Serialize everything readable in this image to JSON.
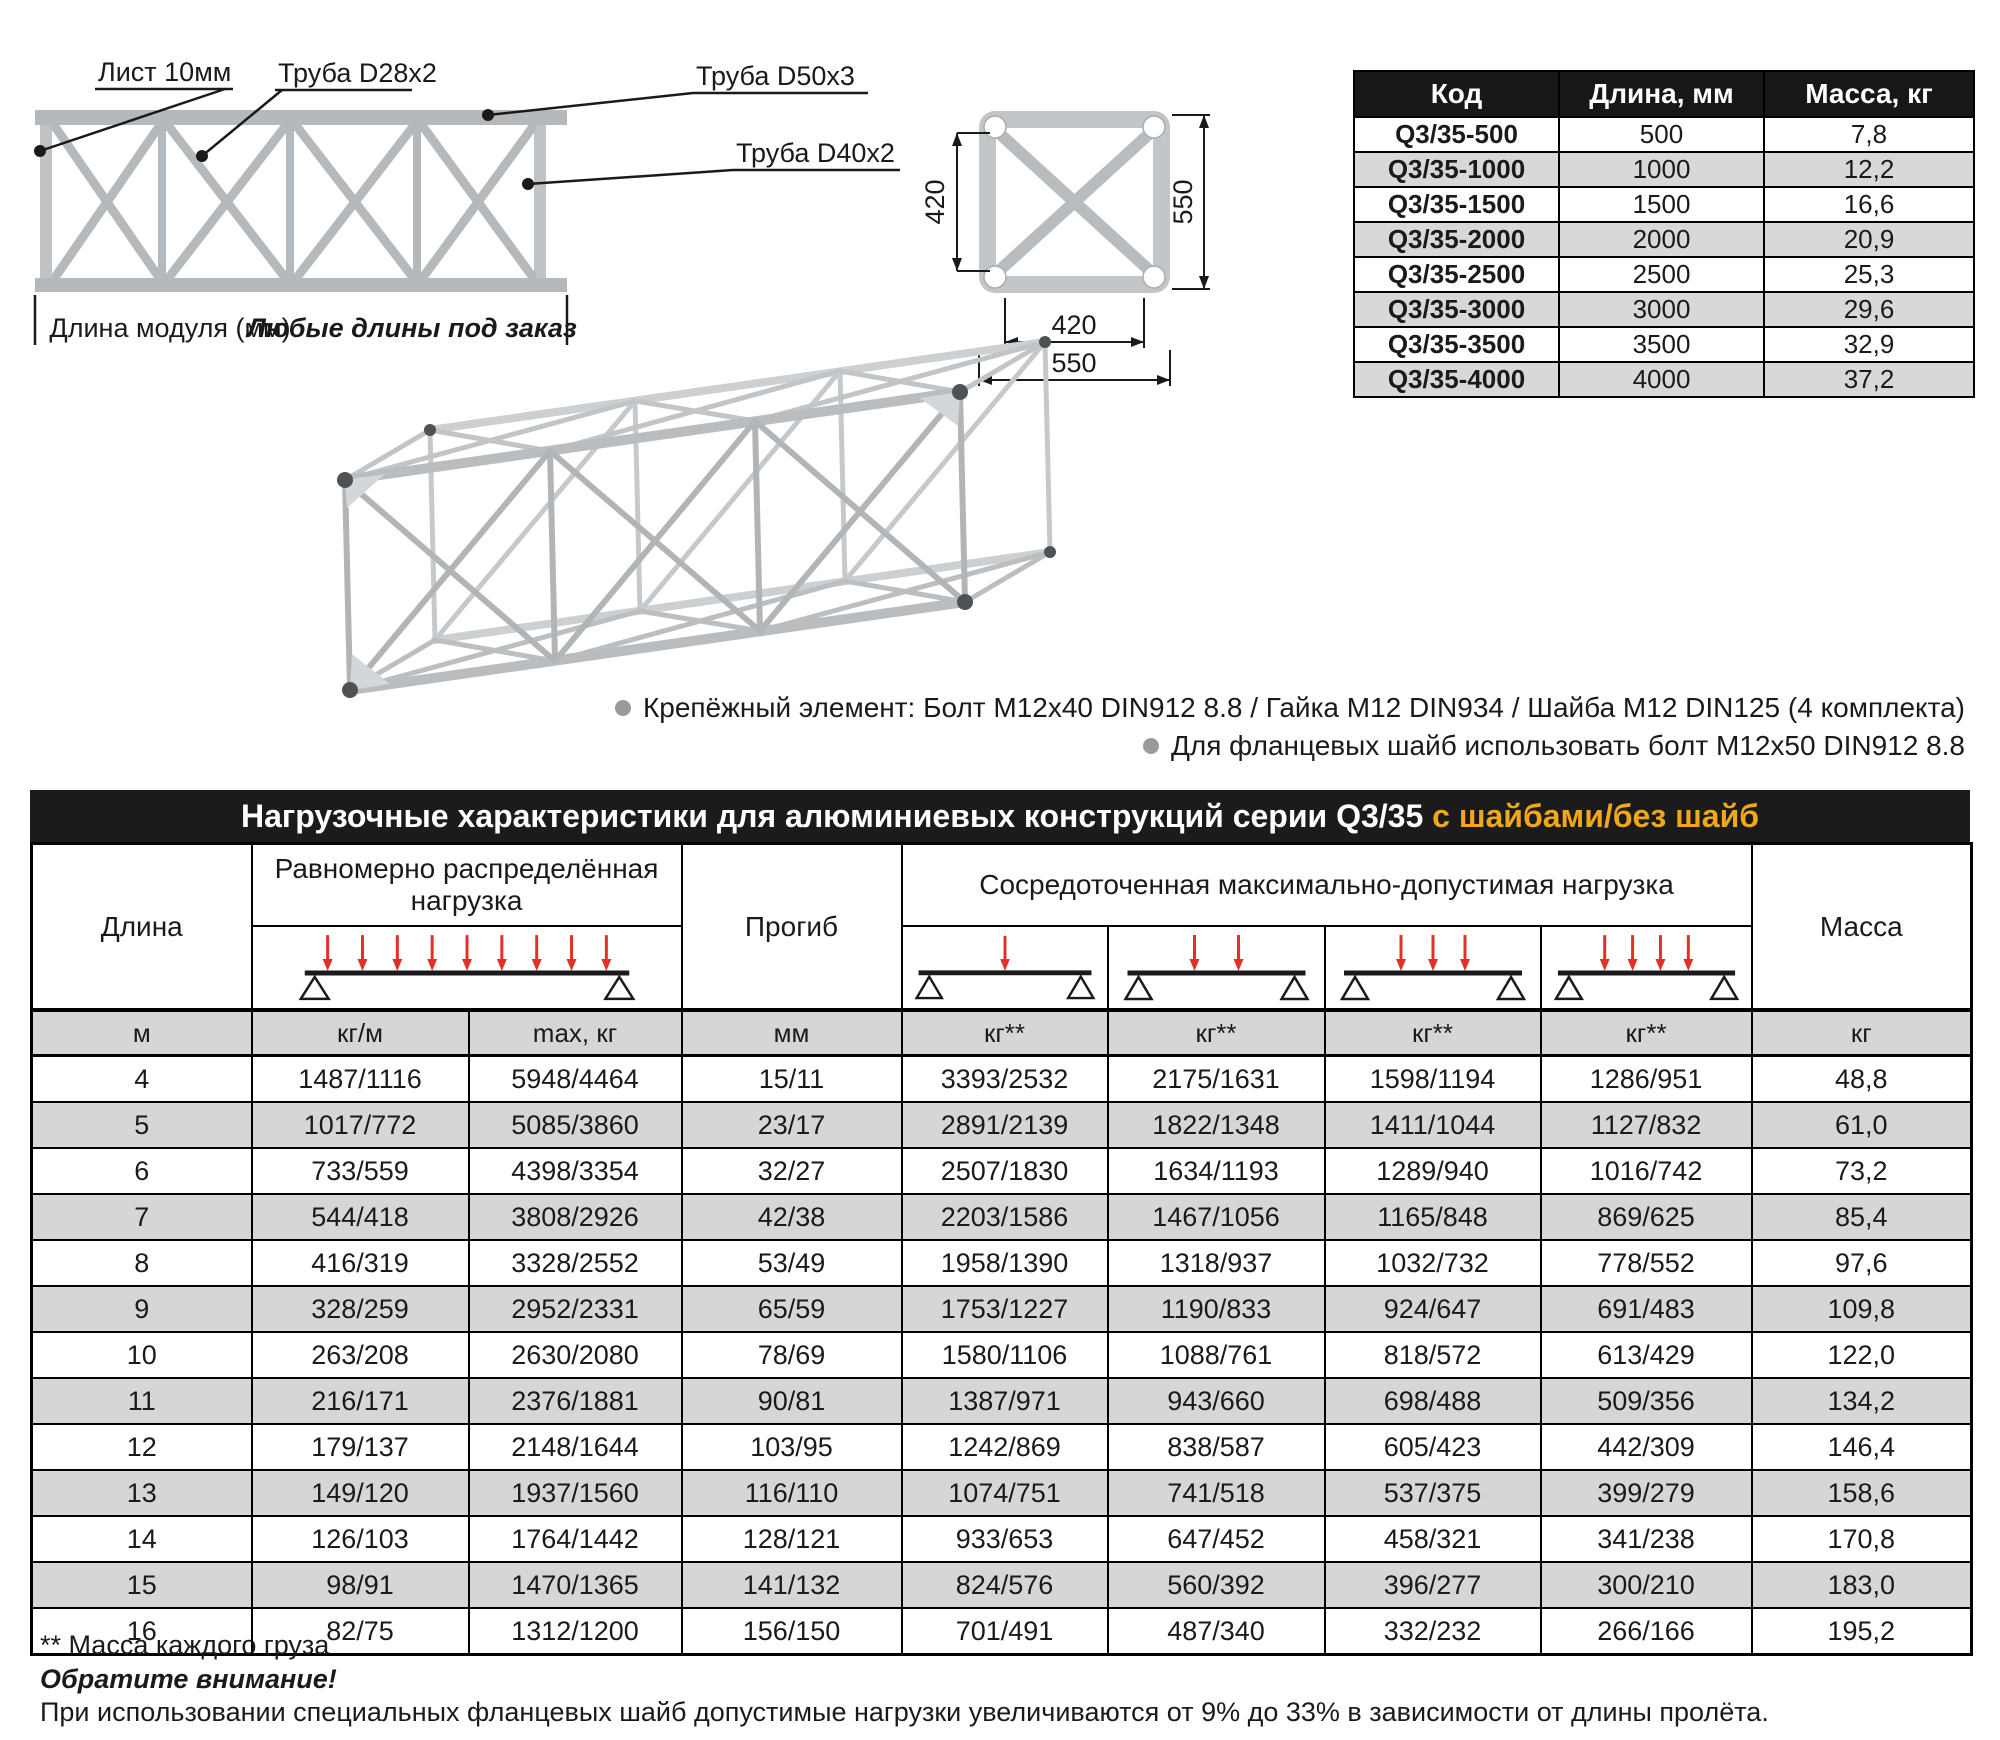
{
  "side_view": {
    "label_sheet": "Лист 10мм",
    "label_tube_d28": "Труба D28x2",
    "label_tube_d50": "Труба D50x3",
    "label_tube_d40": "Труба D40x2",
    "dim_caption": "Длина модуля (мм)",
    "dim_note": "Любые длины под заказ"
  },
  "cross_section": {
    "dim_left_height": "420",
    "dim_right_height": "550",
    "dim_bottom_inner": "420",
    "dim_bottom_outer": "550"
  },
  "codes_table": {
    "headers": [
      "Код",
      "Длина, мм",
      "Масса, кг"
    ],
    "rows": [
      [
        "Q3/35-500",
        "500",
        "7,8"
      ],
      [
        "Q3/35-1000",
        "1000",
        "12,2"
      ],
      [
        "Q3/35-1500",
        "1500",
        "16,6"
      ],
      [
        "Q3/35-2000",
        "2000",
        "20,9"
      ],
      [
        "Q3/35-2500",
        "2500",
        "25,3"
      ],
      [
        "Q3/35-3000",
        "3000",
        "29,6"
      ],
      [
        "Q3/35-3500",
        "3500",
        "32,9"
      ],
      [
        "Q3/35-4000",
        "4000",
        "37,2"
      ]
    ]
  },
  "mounting_notes": {
    "note1": "Крепёжный элемент: Болт М12х40 DIN912 8.8 / Гайка М12 DIN934 / Шайба М12 DIN125 (4 комплекта)",
    "note2": "Для фланцевых шайб использовать болт М12х50 DIN912 8.8"
  },
  "load_table": {
    "title": "Нагрузочные характеристики для алюминиевых конструкций серии Q3/35 ",
    "title_highlight": "с шайбами/без шайб",
    "headers": {
      "length": "Длина",
      "uniform": "Равномерно распределённая нагрузка",
      "deflection": "Прогиб",
      "concentrated": "Сосредоточенная максимально-допустимая нагрузка",
      "mass": "Масса"
    },
    "units": [
      "м",
      "кг/м",
      "max, кг",
      "мм",
      "кг**",
      "кг**",
      "кг**",
      "кг**",
      "кг"
    ],
    "rows": [
      [
        "4",
        "1487/1116",
        "5948/4464",
        "15/11",
        "3393/2532",
        "2175/1631",
        "1598/1194",
        "1286/951",
        "48,8"
      ],
      [
        "5",
        "1017/772",
        "5085/3860",
        "23/17",
        "2891/2139",
        "1822/1348",
        "1411/1044",
        "1127/832",
        "61,0"
      ],
      [
        "6",
        "733/559",
        "4398/3354",
        "32/27",
        "2507/1830",
        "1634/1193",
        "1289/940",
        "1016/742",
        "73,2"
      ],
      [
        "7",
        "544/418",
        "3808/2926",
        "42/38",
        "2203/1586",
        "1467/1056",
        "1165/848",
        "869/625",
        "85,4"
      ],
      [
        "8",
        "416/319",
        "3328/2552",
        "53/49",
        "1958/1390",
        "1318/937",
        "1032/732",
        "778/552",
        "97,6"
      ],
      [
        "9",
        "328/259",
        "2952/2331",
        "65/59",
        "1753/1227",
        "1190/833",
        "924/647",
        "691/483",
        "109,8"
      ],
      [
        "10",
        "263/208",
        "2630/2080",
        "78/69",
        "1580/1106",
        "1088/761",
        "818/572",
        "613/429",
        "122,0"
      ],
      [
        "11",
        "216/171",
        "2376/1881",
        "90/81",
        "1387/971",
        "943/660",
        "698/488",
        "509/356",
        "134,2"
      ],
      [
        "12",
        "179/137",
        "2148/1644",
        "103/95",
        "1242/869",
        "838/587",
        "605/423",
        "442/309",
        "146,4"
      ],
      [
        "13",
        "149/120",
        "1937/1560",
        "116/110",
        "1074/751",
        "741/518",
        "537/375",
        "399/279",
        "158,6"
      ],
      [
        "14",
        "126/103",
        "1764/1442",
        "128/121",
        "933/653",
        "647/452",
        "458/321",
        "341/238",
        "170,8"
      ],
      [
        "15",
        "98/91",
        "1470/1365",
        "141/132",
        "824/576",
        "560/392",
        "396/277",
        "300/210",
        "183,0"
      ],
      [
        "16",
        "82/75",
        "1312/1200",
        "156/150",
        "701/491",
        "487/340",
        "332/232",
        "266/166",
        "195,2"
      ]
    ]
  },
  "footnotes": {
    "mass_note": "** Масса каждого груза",
    "attention_title": "Обратите внимание!",
    "attention_text": "При использовании специальных фланцевых шайб допустимые нагрузки увеличиваются от 9% до 33% в зависимости от длины пролёта."
  },
  "colors": {
    "accent_orange": "#f2a71b",
    "arrow_red": "#e03127",
    "row_gray": "#d6d6d6",
    "bar_black": "#1b1b1b"
  }
}
